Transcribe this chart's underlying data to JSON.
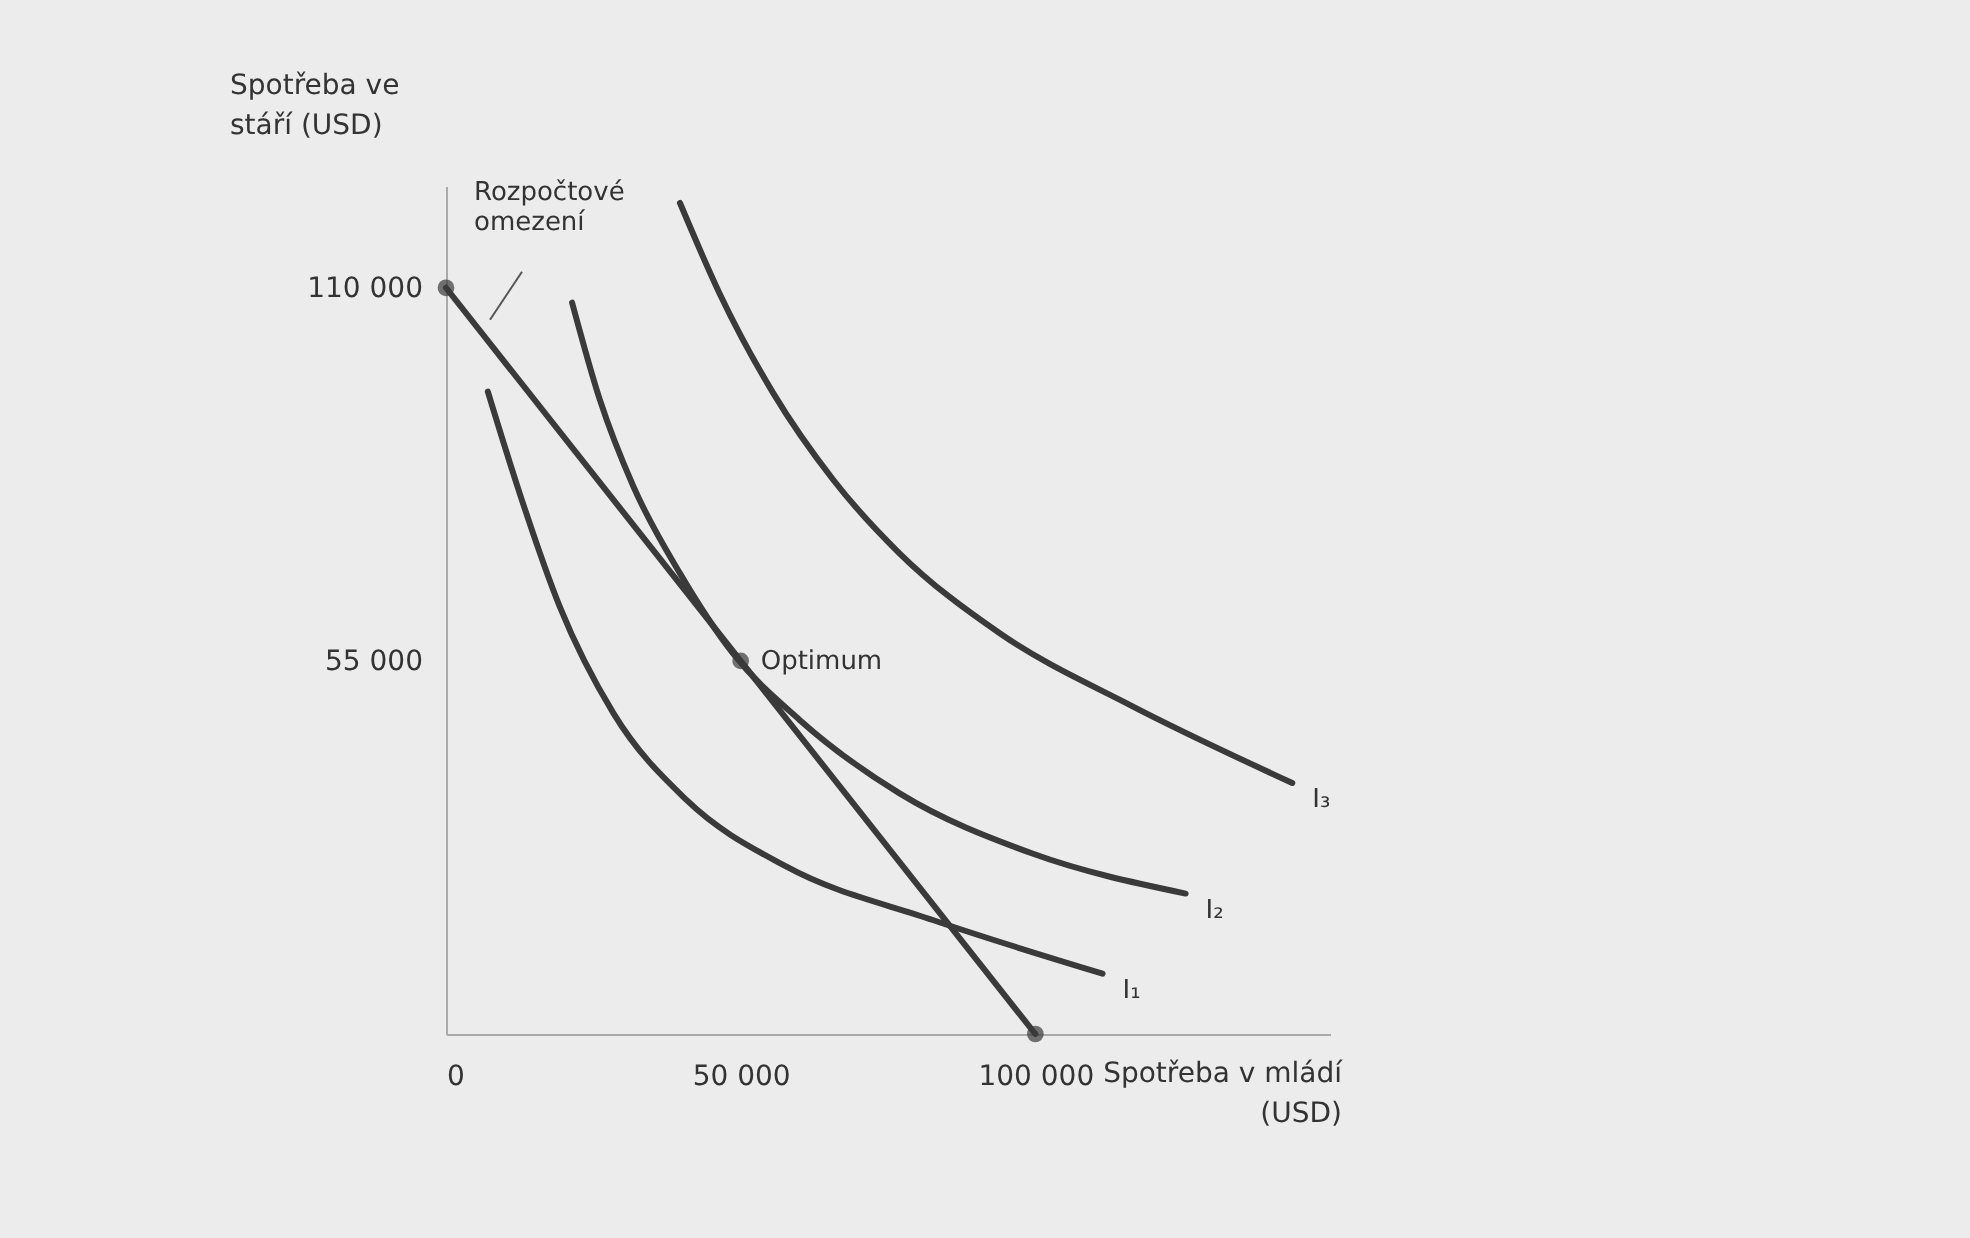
{
  "chart_data": {
    "type": "line",
    "xlabel": "Spotřeba v mládí\n(USD)",
    "ylabel": "Spotřeba ve\nstáří (USD)",
    "xlim": [
      0,
      150000
    ],
    "ylim": [
      0,
      125000
    ],
    "xticks": [
      {
        "value": 0,
        "label": "0"
      },
      {
        "value": 50000,
        "label": "50 000"
      },
      {
        "value": 100000,
        "label": "100 000"
      }
    ],
    "yticks": [
      {
        "value": 55000,
        "label": "55 000"
      },
      {
        "value": 110000,
        "label": "110 000"
      }
    ],
    "grid": false,
    "series": [
      {
        "name": "Rozpočtové omezení",
        "color": "#3a3a3a",
        "marker": "circle",
        "x": [
          0,
          100000
        ],
        "values": [
          110000,
          0
        ]
      },
      {
        "name": "I₁",
        "color": "#3a3a3a",
        "x": [
          7100,
          12500,
          19300,
          28400,
          40800,
          57700,
          82600,
          111400
        ],
        "values": [
          94700,
          79700,
          63000,
          47300,
          34500,
          24700,
          16800,
          8900
        ]
      },
      {
        "name": "I₂",
        "color": "#3a3a3a",
        "x": [
          21400,
          26100,
          31800,
          39700,
          48700,
          60000,
          76900,
          99500,
          125500
        ],
        "values": [
          107800,
          93500,
          80700,
          67900,
          56100,
          46300,
          35500,
          26600,
          20700
        ]
      },
      {
        "name": "I₃",
        "color": "#3a3a3a",
        "x": [
          39700,
          46400,
          55500,
          65700,
          76900,
          93900,
          116500,
          143600
        ],
        "values": [
          122500,
          109200,
          94500,
          81700,
          70900,
          59100,
          48300,
          37000
        ]
      },
      {
        "name": "Optimum",
        "type": "scatter",
        "color": "#3a3a3a",
        "marker": "circle",
        "x": [
          50000
        ],
        "values": [
          55000
        ]
      }
    ]
  }
}
